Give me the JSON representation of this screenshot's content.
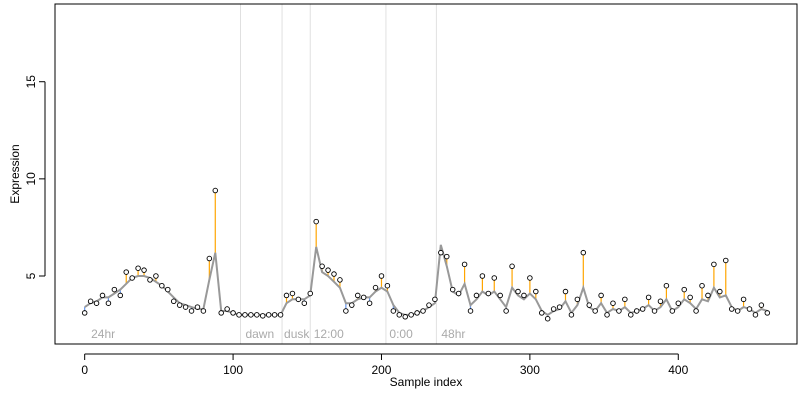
{
  "chart_data": {
    "type": "scatter",
    "title": "",
    "xlabel": "Sample index",
    "ylabel": "Expression",
    "xlim": [
      -20,
      480
    ],
    "ylim": [
      1.5,
      19
    ],
    "xticks": [
      0,
      100,
      200,
      300,
      400
    ],
    "yticks": [
      5,
      10,
      15
    ],
    "grid": false,
    "legend": "none",
    "colors": {
      "axis": "#000000",
      "marker_fill": "#ffffff",
      "marker_stroke": "#000000",
      "trend": "#999999",
      "deviation_up": "#ffa500",
      "deviation_down": "#6495ed",
      "separator": "#e0e0e0",
      "region_label": "#aaaaaa"
    },
    "separators": [
      105,
      133,
      152,
      203,
      237
    ],
    "region_labels": [
      {
        "text": "24hr",
        "x": 3
      },
      {
        "text": "dawn",
        "x": 107
      },
      {
        "text": "dusk",
        "x": 133
      },
      {
        "text": "12:00",
        "x": 153
      },
      {
        "text": "0:00",
        "x": 204
      },
      {
        "text": "48hr",
        "x": 239
      }
    ],
    "x": [
      0,
      4,
      8,
      12,
      16,
      20,
      24,
      28,
      32,
      36,
      40,
      44,
      48,
      52,
      56,
      60,
      64,
      68,
      72,
      76,
      80,
      84,
      88,
      92,
      96,
      100,
      104,
      108,
      112,
      116,
      120,
      124,
      128,
      132,
      136,
      140,
      144,
      148,
      152,
      156,
      160,
      164,
      168,
      172,
      176,
      180,
      184,
      188,
      192,
      196,
      200,
      204,
      208,
      212,
      216,
      220,
      224,
      228,
      232,
      236,
      240,
      244,
      248,
      252,
      256,
      260,
      264,
      268,
      272,
      276,
      280,
      284,
      288,
      292,
      296,
      300,
      304,
      308,
      312,
      316,
      320,
      324,
      328,
      332,
      336,
      340,
      344,
      348,
      352,
      356,
      360,
      364,
      368,
      372,
      376,
      380,
      384,
      388,
      392,
      396,
      400,
      404,
      408,
      412,
      416,
      420,
      424,
      428,
      432,
      436,
      440,
      444,
      448,
      452,
      456,
      460
    ],
    "y": [
      3.1,
      3.7,
      3.6,
      4.0,
      3.6,
      4.3,
      4.0,
      5.2,
      4.9,
      5.4,
      5.3,
      4.8,
      5.0,
      4.5,
      4.3,
      3.7,
      3.5,
      3.4,
      3.2,
      3.4,
      3.2,
      5.9,
      9.4,
      3.1,
      3.3,
      3.1,
      3.0,
      3.0,
      3.0,
      3.0,
      2.95,
      3.0,
      3.0,
      3.0,
      4.0,
      4.1,
      3.8,
      3.6,
      4.1,
      7.8,
      5.5,
      5.3,
      5.1,
      4.8,
      3.2,
      3.5,
      4.0,
      3.9,
      3.6,
      4.4,
      5.0,
      4.5,
      3.2,
      3.0,
      2.9,
      3.0,
      3.1,
      3.2,
      3.5,
      3.8,
      6.2,
      6.0,
      4.3,
      4.1,
      5.6,
      3.2,
      4.0,
      5.0,
      4.1,
      4.9,
      4.0,
      3.2,
      5.5,
      4.2,
      4.0,
      4.9,
      4.2,
      3.1,
      2.8,
      3.3,
      3.4,
      4.2,
      3.0,
      3.8,
      6.2,
      3.5,
      3.2,
      4.0,
      3.0,
      3.6,
      3.2,
      3.8,
      3.0,
      3.2,
      3.3,
      3.9,
      3.2,
      3.7,
      4.5,
      3.2,
      3.6,
      4.3,
      3.9,
      3.2,
      4.5,
      4.0,
      5.6,
      4.2,
      5.8,
      3.3,
      3.2,
      3.8,
      3.3,
      3.0,
      3.5,
      3.1
    ],
    "trend": [
      3.4,
      3.6,
      3.7,
      3.9,
      3.9,
      4.1,
      4.3,
      4.6,
      4.9,
      5.0,
      5.0,
      4.9,
      4.7,
      4.5,
      4.2,
      3.9,
      3.6,
      3.5,
      3.4,
      3.3,
      3.3,
      4.8,
      6.2,
      3.2,
      3.2,
      3.1,
      3.0,
      3.0,
      3.0,
      3.0,
      3.0,
      3.0,
      3.0,
      3.0,
      3.6,
      3.8,
      3.8,
      3.8,
      4.0,
      6.5,
      5.2,
      5.0,
      4.7,
      4.4,
      3.6,
      3.6,
      3.8,
      3.9,
      3.9,
      4.2,
      4.4,
      4.2,
      3.5,
      3.1,
      3.0,
      3.0,
      3.1,
      3.2,
      3.4,
      3.6,
      6.6,
      5.5,
      4.2,
      4.0,
      4.6,
      3.5,
      3.8,
      4.2,
      4.0,
      4.2,
      3.8,
      3.4,
      4.4,
      4.0,
      3.8,
      4.1,
      3.8,
      3.2,
      3.0,
      3.2,
      3.3,
      3.7,
      3.1,
      3.5,
      4.4,
      3.4,
      3.2,
      3.6,
      3.1,
      3.3,
      3.2,
      3.4,
      3.1,
      3.2,
      3.3,
      3.5,
      3.2,
      3.4,
      3.8,
      3.2,
      3.4,
      3.8,
      3.6,
      3.3,
      3.8,
      3.7,
      4.4,
      3.9,
      4.0,
      3.4,
      3.2,
      3.4,
      3.3,
      3.1,
      3.3,
      3.2
    ]
  }
}
